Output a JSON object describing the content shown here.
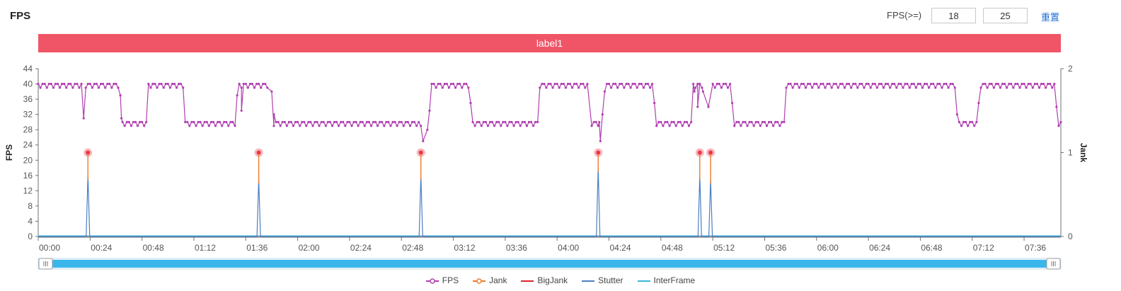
{
  "header": {
    "title": "FPS",
    "fps_label": "FPS(>=)",
    "threshold_low": "18",
    "threshold_high": "25",
    "reset_label": "重置"
  },
  "label_bar": {
    "text": "label1",
    "color": "#ef5567"
  },
  "colors": {
    "fps": "#b13fb1",
    "jank": "#f07a2a",
    "bigjank": "#d9262b",
    "stutter": "#4a7fc1",
    "interframe": "#3ab6d9",
    "jank_marker": "#f07f7f",
    "zoom_bar": "#3ab6ea"
  },
  "legend": [
    {
      "name": "FPS",
      "color": "#b13fb1",
      "icon": "line-circle"
    },
    {
      "name": "Jank",
      "color": "#f07a2a",
      "icon": "line-circle"
    },
    {
      "name": "BigJank",
      "color": "#d9262b",
      "icon": "line"
    },
    {
      "name": "Stutter",
      "color": "#4a7fc1",
      "icon": "line"
    },
    {
      "name": "InterFrame",
      "color": "#3ab6d9",
      "icon": "line"
    }
  ],
  "chart_data": {
    "type": "line",
    "y_left": {
      "label": "FPS",
      "min": 0,
      "max": 44,
      "ticks": [
        0,
        4,
        8,
        12,
        16,
        20,
        24,
        28,
        32,
        36,
        40,
        44
      ]
    },
    "y_right": {
      "label": "Jank",
      "min": 0,
      "max": 2,
      "ticks": [
        0,
        1,
        2
      ]
    },
    "x": {
      "min_seconds": 0,
      "max_seconds": 473,
      "tick_labels": [
        "00:00",
        "00:24",
        "00:48",
        "01:12",
        "01:36",
        "02:00",
        "02:24",
        "02:48",
        "03:12",
        "03:36",
        "04:00",
        "04:24",
        "04:48",
        "05:12",
        "05:36",
        "06:00",
        "06:24",
        "06:48",
        "07:12",
        "07:36"
      ]
    },
    "grid": false,
    "legend_position": "bottom",
    "fps_segments": [
      {
        "from_s": 0,
        "to_s": 20,
        "fps": 40
      },
      {
        "from_s": 22,
        "to_s": 37,
        "fps": 40
      },
      {
        "from_s": 39,
        "to_s": 49,
        "fps": 30
      },
      {
        "from_s": 51,
        "to_s": 67,
        "fps": 40
      },
      {
        "from_s": 68,
        "to_s": 91,
        "fps": 30
      },
      {
        "from_s": 93,
        "to_s": 106,
        "fps": 40
      },
      {
        "from_s": 109,
        "to_s": 176,
        "fps": 30
      },
      {
        "from_s": 182,
        "to_s": 199,
        "fps": 40
      },
      {
        "from_s": 201,
        "to_s": 231,
        "fps": 30
      },
      {
        "from_s": 232,
        "to_s": 254,
        "fps": 40
      },
      {
        "from_s": 256,
        "to_s": 259,
        "fps": 30
      },
      {
        "from_s": 263,
        "to_s": 284,
        "fps": 40
      },
      {
        "from_s": 286,
        "to_s": 302,
        "fps": 30
      },
      {
        "from_s": 303,
        "to_s": 307,
        "fps": 40
      },
      {
        "from_s": 312,
        "to_s": 320,
        "fps": 40
      },
      {
        "from_s": 322,
        "to_s": 345,
        "fps": 30
      },
      {
        "from_s": 346,
        "to_s": 424,
        "fps": 40
      },
      {
        "from_s": 426,
        "to_s": 434,
        "fps": 30
      },
      {
        "from_s": 436,
        "to_s": 470,
        "fps": 40
      }
    ],
    "fps_points": [
      {
        "t": 21,
        "fps": 31
      },
      {
        "t": 38,
        "fps": 37
      },
      {
        "t": 38.5,
        "fps": 31
      },
      {
        "t": 50,
        "fps": 30
      },
      {
        "t": 92,
        "fps": 37
      },
      {
        "t": 94,
        "fps": 33
      },
      {
        "t": 108,
        "fps": 38
      },
      {
        "t": 109,
        "fps": 32
      },
      {
        "t": 177,
        "fps": 29
      },
      {
        "t": 178,
        "fps": 25
      },
      {
        "t": 180,
        "fps": 28
      },
      {
        "t": 181,
        "fps": 33
      },
      {
        "t": 200,
        "fps": 35
      },
      {
        "t": 259.5,
        "fps": 30
      },
      {
        "t": 260,
        "fps": 25
      },
      {
        "t": 261,
        "fps": 32
      },
      {
        "t": 262,
        "fps": 38
      },
      {
        "t": 285,
        "fps": 35
      },
      {
        "t": 303.5,
        "fps": 38
      },
      {
        "t": 305,
        "fps": 34
      },
      {
        "t": 307.5,
        "fps": 38
      },
      {
        "t": 310,
        "fps": 34
      },
      {
        "t": 321,
        "fps": 35
      },
      {
        "t": 425,
        "fps": 32
      },
      {
        "t": 435,
        "fps": 35
      },
      {
        "t": 471,
        "fps": 34
      },
      {
        "t": 472,
        "fps": 29
      },
      {
        "t": 473,
        "fps": 30
      }
    ],
    "jank_events": [
      {
        "t": 23,
        "jank": 1,
        "stutter_fps": 16
      },
      {
        "t": 102,
        "jank": 1,
        "stutter_fps": 15
      },
      {
        "t": 177,
        "jank": 1,
        "stutter_fps": 16
      },
      {
        "t": 259,
        "jank": 1,
        "stutter_fps": 18
      },
      {
        "t": 306,
        "jank": 1,
        "stutter_fps": 16
      },
      {
        "t": 311,
        "jank": 1,
        "stutter_fps": 15
      }
    ],
    "bigjank_value": 0,
    "interframe_value": 0
  }
}
